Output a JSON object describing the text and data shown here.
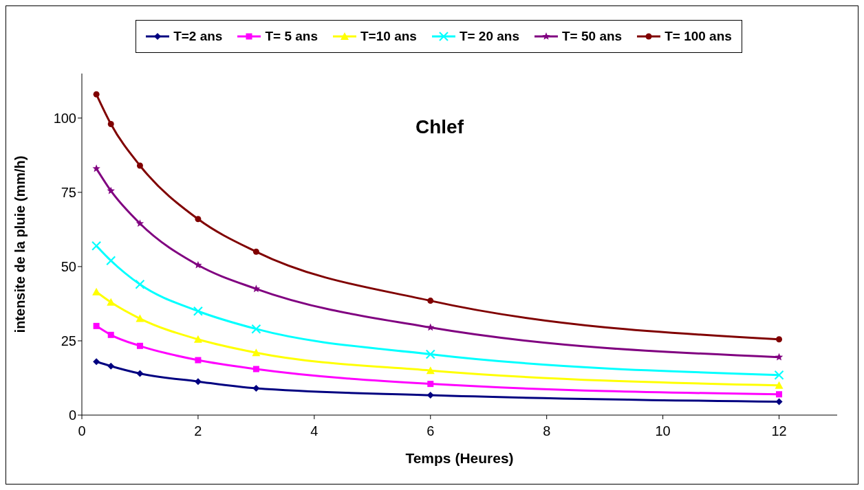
{
  "chart_data": {
    "type": "line",
    "title": "Chlef",
    "xlabel": "Temps (Heures)",
    "ylabel": "intensite de la pluie (mm/h)",
    "x": [
      0.25,
      0.5,
      1,
      2,
      3,
      6,
      12
    ],
    "series": [
      {
        "name": "T=2 ans",
        "color": "#000080",
        "marker": "diamond",
        "values": [
          18,
          16.5,
          14,
          11.3,
          9,
          6.7,
          4.5
        ]
      },
      {
        "name": "T= 5 ans",
        "color": "#ff00ff",
        "marker": "square",
        "values": [
          30,
          27,
          23.3,
          18.5,
          15.5,
          10.5,
          7
        ]
      },
      {
        "name": "T=10 ans",
        "color": "#ffff00",
        "marker": "triangle",
        "values": [
          41.5,
          38,
          32.5,
          25.5,
          21,
          15,
          10
        ]
      },
      {
        "name": "T= 20 ans",
        "color": "#00ffff",
        "marker": "cross",
        "values": [
          57,
          52,
          44,
          35,
          29,
          20.5,
          13.5
        ]
      },
      {
        "name": "T= 50 ans",
        "color": "#800080",
        "marker": "star",
        "values": [
          83,
          75.5,
          64.5,
          50.5,
          42.5,
          29.5,
          19.5
        ]
      },
      {
        "name": "T= 100 ans",
        "color": "#800000",
        "marker": "circle",
        "values": [
          108,
          98,
          84,
          66,
          55,
          38.5,
          25.5
        ]
      }
    ],
    "xlim": [
      0,
      13
    ],
    "xticks": [
      0,
      2,
      4,
      6,
      8,
      10,
      12
    ],
    "ylim": [
      0,
      115
    ],
    "yticks": [
      0,
      25,
      50,
      75,
      100
    ],
    "grid": false,
    "legend": "top",
    "line_style": "solid"
  }
}
